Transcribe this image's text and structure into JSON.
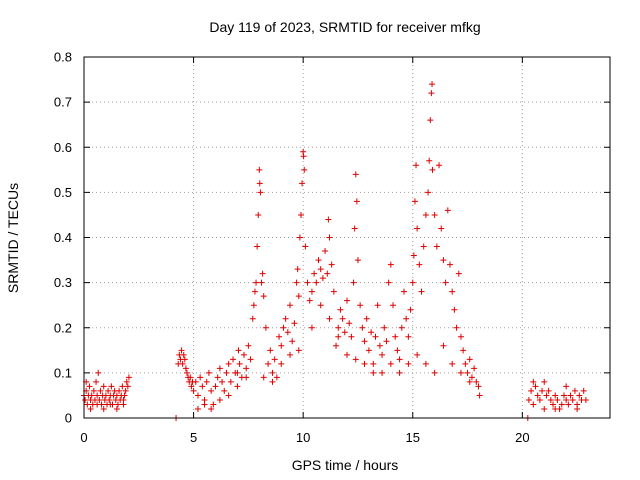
{
  "chart_data": {
    "type": "scatter",
    "title": "Day 119 of 2023, SRMTID for receiver mfkg",
    "xlabel": "GPS time / hours",
    "ylabel": "SRMTID / TECUs",
    "xlim": [
      0,
      24
    ],
    "ylim": [
      0,
      0.8
    ],
    "xticks": [
      0,
      5,
      10,
      15,
      20
    ],
    "yticks": [
      0,
      0.1,
      0.2,
      0.3,
      0.4,
      0.5,
      0.6,
      0.7,
      0.8
    ],
    "xtick_labels": [
      "0",
      "5",
      "10",
      "15",
      "20"
    ],
    "ytick_labels": [
      "0",
      "0.1",
      "0.2",
      "0.3",
      "0.4",
      "0.5",
      "0.6",
      "0.7",
      "0.8"
    ],
    "grid": true,
    "marker": "plus",
    "color": "#e00000",
    "series": [
      {
        "name": "SRMTID",
        "points": [
          [
            0.0,
            0.05
          ],
          [
            0.05,
            0.04
          ],
          [
            0.1,
            0.06
          ],
          [
            0.15,
            0.03
          ],
          [
            0.2,
            0.05
          ],
          [
            0.25,
            0.07
          ],
          [
            0.3,
            0.04
          ],
          [
            0.35,
            0.05
          ],
          [
            0.4,
            0.03
          ],
          [
            0.45,
            0.06
          ],
          [
            0.5,
            0.04
          ],
          [
            0.55,
            0.08
          ],
          [
            0.6,
            0.05
          ],
          [
            0.65,
            0.1
          ],
          [
            0.7,
            0.04
          ],
          [
            0.75,
            0.06
          ],
          [
            0.8,
            0.03
          ],
          [
            0.85,
            0.05
          ],
          [
            0.9,
            0.07
          ],
          [
            0.95,
            0.04
          ],
          [
            1.0,
            0.05
          ],
          [
            1.05,
            0.03
          ],
          [
            1.1,
            0.06
          ],
          [
            1.15,
            0.04
          ],
          [
            1.2,
            0.05
          ],
          [
            1.25,
            0.07
          ],
          [
            1.3,
            0.03
          ],
          [
            1.35,
            0.05
          ],
          [
            1.4,
            0.06
          ],
          [
            1.45,
            0.04
          ],
          [
            1.5,
            0.05
          ],
          [
            1.55,
            0.03
          ],
          [
            1.6,
            0.06
          ],
          [
            1.65,
            0.04
          ],
          [
            1.7,
            0.05
          ],
          [
            1.75,
            0.07
          ],
          [
            1.8,
            0.04
          ],
          [
            1.85,
            0.05
          ],
          [
            1.9,
            0.06
          ],
          [
            1.95,
            0.08
          ],
          [
            2.0,
            0.07
          ],
          [
            2.05,
            0.09
          ],
          [
            0.1,
            0.08
          ],
          [
            0.3,
            0.02
          ],
          [
            0.6,
            0.03
          ],
          [
            0.9,
            0.02
          ],
          [
            1.2,
            0.03
          ],
          [
            1.5,
            0.02
          ],
          [
            1.8,
            0.03
          ],
          [
            4.2,
            0.0
          ],
          [
            4.3,
            0.12
          ],
          [
            4.35,
            0.14
          ],
          [
            4.4,
            0.13
          ],
          [
            4.45,
            0.15
          ],
          [
            4.5,
            0.12
          ],
          [
            4.55,
            0.14
          ],
          [
            4.6,
            0.13
          ],
          [
            4.65,
            0.11
          ],
          [
            4.7,
            0.1
          ],
          [
            4.75,
            0.09
          ],
          [
            4.8,
            0.08
          ],
          [
            4.85,
            0.09
          ],
          [
            4.9,
            0.07
          ],
          [
            4.95,
            0.08
          ],
          [
            5.0,
            0.06
          ],
          [
            5.1,
            0.08
          ],
          [
            5.2,
            0.05
          ],
          [
            5.3,
            0.09
          ],
          [
            5.4,
            0.07
          ],
          [
            5.5,
            0.04
          ],
          [
            5.6,
            0.08
          ],
          [
            5.7,
            0.1
          ],
          [
            5.8,
            0.06
          ],
          [
            5.9,
            0.03
          ],
          [
            6.0,
            0.07
          ],
          [
            6.1,
            0.09
          ],
          [
            6.2,
            0.11
          ],
          [
            6.3,
            0.08
          ],
          [
            6.4,
            0.06
          ],
          [
            6.5,
            0.1
          ],
          [
            6.6,
            0.12
          ],
          [
            6.7,
            0.08
          ],
          [
            6.8,
            0.13
          ],
          [
            6.9,
            0.1
          ],
          [
            7.0,
            0.07
          ],
          [
            7.05,
            0.15
          ],
          [
            7.1,
            0.12
          ],
          [
            7.2,
            0.09
          ],
          [
            7.3,
            0.14
          ],
          [
            7.4,
            0.11
          ],
          [
            7.5,
            0.16
          ],
          [
            7.6,
            0.13
          ],
          [
            7.7,
            0.22
          ],
          [
            7.75,
            0.25
          ],
          [
            7.8,
            0.28
          ],
          [
            7.85,
            0.3
          ],
          [
            7.9,
            0.38
          ],
          [
            7.95,
            0.45
          ],
          [
            8.0,
            0.55
          ],
          [
            8.02,
            0.52
          ],
          [
            8.05,
            0.5
          ],
          [
            8.1,
            0.3
          ],
          [
            8.15,
            0.32
          ],
          [
            8.2,
            0.27
          ],
          [
            8.3,
            0.2
          ],
          [
            8.4,
            0.12
          ],
          [
            8.5,
            0.15
          ],
          [
            8.6,
            0.1
          ],
          [
            8.7,
            0.13
          ],
          [
            8.8,
            0.09
          ],
          [
            8.9,
            0.18
          ],
          [
            9.0,
            0.16
          ],
          [
            9.1,
            0.2
          ],
          [
            9.2,
            0.22
          ],
          [
            9.3,
            0.19
          ],
          [
            9.4,
            0.25
          ],
          [
            9.5,
            0.17
          ],
          [
            9.6,
            0.21
          ],
          [
            9.7,
            0.3
          ],
          [
            9.75,
            0.33
          ],
          [
            9.8,
            0.27
          ],
          [
            9.85,
            0.4
          ],
          [
            9.9,
            0.45
          ],
          [
            9.95,
            0.52
          ],
          [
            10.0,
            0.59
          ],
          [
            10.02,
            0.58
          ],
          [
            10.05,
            0.55
          ],
          [
            10.1,
            0.38
          ],
          [
            10.2,
            0.3
          ],
          [
            10.3,
            0.26
          ],
          [
            10.4,
            0.28
          ],
          [
            10.5,
            0.32
          ],
          [
            10.6,
            0.3
          ],
          [
            10.7,
            0.35
          ],
          [
            10.8,
            0.33
          ],
          [
            10.9,
            0.31
          ],
          [
            11.0,
            0.37
          ],
          [
            11.1,
            0.32
          ],
          [
            11.15,
            0.44
          ],
          [
            11.2,
            0.4
          ],
          [
            11.3,
            0.34
          ],
          [
            11.4,
            0.28
          ],
          [
            11.5,
            0.16
          ],
          [
            11.6,
            0.2
          ],
          [
            11.7,
            0.24
          ],
          [
            11.8,
            0.22
          ],
          [
            11.9,
            0.19
          ],
          [
            12.0,
            0.26
          ],
          [
            12.1,
            0.21
          ],
          [
            12.2,
            0.18
          ],
          [
            12.3,
            0.3
          ],
          [
            12.35,
            0.42
          ],
          [
            12.4,
            0.54
          ],
          [
            12.45,
            0.48
          ],
          [
            12.5,
            0.35
          ],
          [
            12.6,
            0.25
          ],
          [
            12.7,
            0.2
          ],
          [
            12.8,
            0.17
          ],
          [
            12.9,
            0.22
          ],
          [
            13.0,
            0.15
          ],
          [
            13.1,
            0.19
          ],
          [
            13.2,
            0.12
          ],
          [
            13.3,
            0.18
          ],
          [
            13.4,
            0.25
          ],
          [
            13.5,
            0.16
          ],
          [
            13.6,
            0.14
          ],
          [
            13.7,
            0.2
          ],
          [
            13.8,
            0.17
          ],
          [
            13.9,
            0.3
          ],
          [
            14.0,
            0.34
          ],
          [
            14.1,
            0.25
          ],
          [
            14.2,
            0.18
          ],
          [
            14.3,
            0.15
          ],
          [
            14.4,
            0.13
          ],
          [
            14.5,
            0.2
          ],
          [
            14.6,
            0.28
          ],
          [
            14.7,
            0.22
          ],
          [
            14.8,
            0.18
          ],
          [
            14.9,
            0.24
          ],
          [
            15.0,
            0.3
          ],
          [
            15.05,
            0.36
          ],
          [
            15.1,
            0.48
          ],
          [
            15.15,
            0.56
          ],
          [
            15.2,
            0.42
          ],
          [
            15.3,
            0.34
          ],
          [
            15.4,
            0.28
          ],
          [
            15.5,
            0.38
          ],
          [
            15.6,
            0.45
          ],
          [
            15.7,
            0.5
          ],
          [
            15.75,
            0.57
          ],
          [
            15.8,
            0.66
          ],
          [
            15.85,
            0.72
          ],
          [
            15.88,
            0.74
          ],
          [
            15.9,
            0.55
          ],
          [
            16.0,
            0.45
          ],
          [
            16.1,
            0.38
          ],
          [
            16.2,
            0.56
          ],
          [
            16.3,
            0.42
          ],
          [
            16.4,
            0.35
          ],
          [
            16.5,
            0.3
          ],
          [
            16.6,
            0.46
          ],
          [
            16.7,
            0.34
          ],
          [
            16.8,
            0.28
          ],
          [
            16.9,
            0.24
          ],
          [
            17.0,
            0.2
          ],
          [
            17.1,
            0.32
          ],
          [
            17.2,
            0.18
          ],
          [
            17.3,
            0.15
          ],
          [
            17.4,
            0.12
          ],
          [
            17.5,
            0.1
          ],
          [
            17.6,
            0.13
          ],
          [
            17.7,
            0.09
          ],
          [
            17.8,
            0.11
          ],
          [
            17.9,
            0.08
          ],
          [
            18.0,
            0.07
          ],
          [
            18.05,
            0.05
          ],
          [
            5.2,
            0.02
          ],
          [
            5.5,
            0.03
          ],
          [
            5.8,
            0.02
          ],
          [
            6.2,
            0.04
          ],
          [
            6.6,
            0.05
          ],
          [
            7.0,
            0.1
          ],
          [
            7.4,
            0.09
          ],
          [
            8.2,
            0.09
          ],
          [
            8.6,
            0.08
          ],
          [
            9.0,
            0.12
          ],
          [
            9.4,
            0.14
          ],
          [
            9.8,
            0.15
          ],
          [
            10.4,
            0.2
          ],
          [
            10.8,
            0.25
          ],
          [
            11.2,
            0.22
          ],
          [
            11.6,
            0.18
          ],
          [
            12.0,
            0.14
          ],
          [
            12.4,
            0.13
          ],
          [
            12.8,
            0.12
          ],
          [
            13.2,
            0.1
          ],
          [
            13.6,
            0.1
          ],
          [
            14.0,
            0.12
          ],
          [
            14.4,
            0.1
          ],
          [
            14.8,
            0.12
          ],
          [
            15.2,
            0.14
          ],
          [
            15.6,
            0.12
          ],
          [
            16.0,
            0.1
          ],
          [
            16.4,
            0.16
          ],
          [
            16.8,
            0.12
          ],
          [
            17.2,
            0.1
          ],
          [
            17.6,
            0.08
          ],
          [
            20.25,
            0.0
          ],
          [
            20.3,
            0.04
          ],
          [
            20.4,
            0.06
          ],
          [
            20.5,
            0.03
          ],
          [
            20.6,
            0.07
          ],
          [
            20.7,
            0.05
          ],
          [
            20.8,
            0.04
          ],
          [
            20.9,
            0.06
          ],
          [
            21.0,
            0.08
          ],
          [
            21.1,
            0.05
          ],
          [
            21.2,
            0.06
          ],
          [
            21.3,
            0.04
          ],
          [
            21.4,
            0.03
          ],
          [
            21.5,
            0.05
          ],
          [
            21.6,
            0.04
          ],
          [
            21.7,
            0.02
          ],
          [
            21.8,
            0.03
          ],
          [
            21.9,
            0.05
          ],
          [
            22.0,
            0.04
          ],
          [
            22.1,
            0.03
          ],
          [
            22.2,
            0.05
          ],
          [
            22.3,
            0.04
          ],
          [
            22.4,
            0.06
          ],
          [
            22.5,
            0.03
          ],
          [
            22.6,
            0.05
          ],
          [
            22.7,
            0.04
          ],
          [
            22.8,
            0.06
          ],
          [
            22.9,
            0.04
          ],
          [
            20.5,
            0.08
          ],
          [
            21.0,
            0.02
          ],
          [
            21.5,
            0.02
          ],
          [
            22.0,
            0.07
          ],
          [
            22.5,
            0.02
          ]
        ]
      }
    ]
  }
}
